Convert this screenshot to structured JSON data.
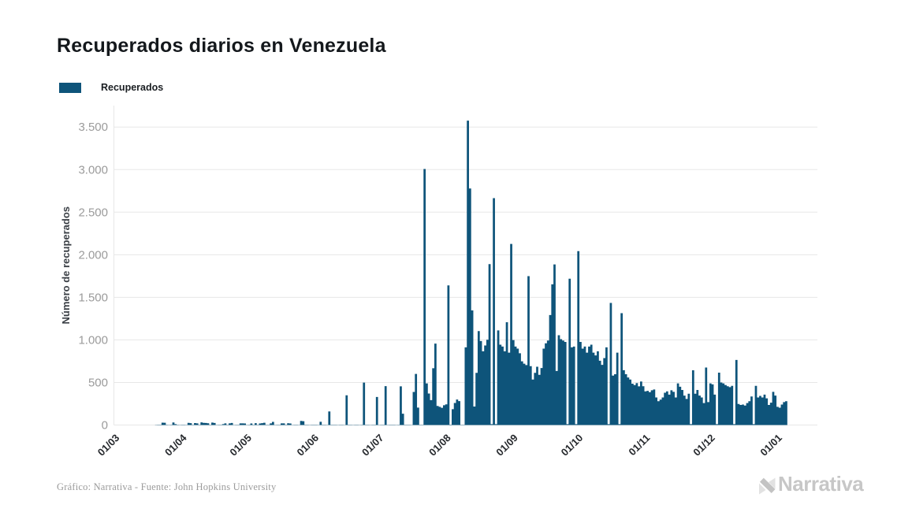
{
  "header": {
    "title": "Recuperados diarios en Venezuela"
  },
  "legend": {
    "label": "Recuperados",
    "swatch_color": "#0e547a"
  },
  "footer": {
    "credit": "Gráfico: Narrativa - Fuente: John Hopkins University",
    "brand": "Narrativa"
  },
  "chart_data": {
    "type": "bar",
    "title": "Recuperados diarios en Venezuela",
    "series_name": "Recuperados",
    "xlabel": "",
    "ylabel": "Número de recuperados",
    "ylim": [
      0,
      3750
    ],
    "grid": true,
    "legend_position": "top-left",
    "bar_color": "#0e547a",
    "y_ticks": [
      {
        "value": 0,
        "label": "0"
      },
      {
        "value": 500,
        "label": "500"
      },
      {
        "value": 1000,
        "label": "1.000"
      },
      {
        "value": 1500,
        "label": "1.500"
      },
      {
        "value": 2000,
        "label": "2.000"
      },
      {
        "value": 2500,
        "label": "2.500"
      },
      {
        "value": 3000,
        "label": "3.000"
      },
      {
        "value": 3500,
        "label": "3.500"
      }
    ],
    "x_ticks": [
      {
        "index": 0,
        "label": "01/03"
      },
      {
        "index": 31,
        "label": "01/04"
      },
      {
        "index": 61,
        "label": "01/05"
      },
      {
        "index": 92,
        "label": "01/06"
      },
      {
        "index": 122,
        "label": "01/07"
      },
      {
        "index": 153,
        "label": "01/08"
      },
      {
        "index": 184,
        "label": "01/09"
      },
      {
        "index": 214,
        "label": "01/10"
      },
      {
        "index": 245,
        "label": "01/11"
      },
      {
        "index": 275,
        "label": "01/12"
      },
      {
        "index": 306,
        "label": "01/01"
      }
    ],
    "dates": [
      "2020-03-01",
      "2020-03-02",
      "2020-03-03",
      "2020-03-04",
      "2020-03-05",
      "2020-03-06",
      "2020-03-07",
      "2020-03-08",
      "2020-03-09",
      "2020-03-10",
      "2020-03-11",
      "2020-03-12",
      "2020-03-13",
      "2020-03-14",
      "2020-03-15",
      "2020-03-16",
      "2020-03-17",
      "2020-03-18",
      "2020-03-19",
      "2020-03-20",
      "2020-03-21",
      "2020-03-22",
      "2020-03-23",
      "2020-03-24",
      "2020-03-25",
      "2020-03-26",
      "2020-03-27",
      "2020-03-28",
      "2020-03-29",
      "2020-03-30",
      "2020-03-31",
      "2020-04-01",
      "2020-04-02",
      "2020-04-03",
      "2020-04-04",
      "2020-04-05",
      "2020-04-06",
      "2020-04-07",
      "2020-04-08",
      "2020-04-09",
      "2020-04-10",
      "2020-04-11",
      "2020-04-12",
      "2020-04-13",
      "2020-04-14",
      "2020-04-15",
      "2020-04-16",
      "2020-04-17",
      "2020-04-18",
      "2020-04-19",
      "2020-04-20",
      "2020-04-21",
      "2020-04-22",
      "2020-04-23",
      "2020-04-24",
      "2020-04-25",
      "2020-04-26",
      "2020-04-27",
      "2020-04-28",
      "2020-04-29",
      "2020-04-30",
      "2020-05-01",
      "2020-05-02",
      "2020-05-03",
      "2020-05-04",
      "2020-05-05",
      "2020-05-06",
      "2020-05-07",
      "2020-05-08",
      "2020-05-09",
      "2020-05-10",
      "2020-05-11",
      "2020-05-12",
      "2020-05-13",
      "2020-05-14",
      "2020-05-15",
      "2020-05-16",
      "2020-05-17",
      "2020-05-18",
      "2020-05-19",
      "2020-05-20",
      "2020-05-21",
      "2020-05-22",
      "2020-05-23",
      "2020-05-24",
      "2020-05-25",
      "2020-05-26",
      "2020-05-27",
      "2020-05-28",
      "2020-05-29",
      "2020-05-30",
      "2020-05-31",
      "2020-06-01",
      "2020-06-02",
      "2020-06-03",
      "2020-06-04",
      "2020-06-05",
      "2020-06-06",
      "2020-06-07",
      "2020-06-08",
      "2020-06-09",
      "2020-06-10",
      "2020-06-11",
      "2020-06-12",
      "2020-06-13",
      "2020-06-14",
      "2020-06-15",
      "2020-06-16",
      "2020-06-17",
      "2020-06-18",
      "2020-06-19",
      "2020-06-20",
      "2020-06-21",
      "2020-06-22",
      "2020-06-23",
      "2020-06-24",
      "2020-06-25",
      "2020-06-26",
      "2020-06-27",
      "2020-06-28",
      "2020-06-29",
      "2020-06-30",
      "2020-07-01",
      "2020-07-02",
      "2020-07-03",
      "2020-07-04",
      "2020-07-05",
      "2020-07-06",
      "2020-07-07",
      "2020-07-08",
      "2020-07-09",
      "2020-07-10",
      "2020-07-11",
      "2020-07-12",
      "2020-07-13",
      "2020-07-14",
      "2020-07-15",
      "2020-07-16",
      "2020-07-17",
      "2020-07-18",
      "2020-07-19",
      "2020-07-20",
      "2020-07-21",
      "2020-07-22",
      "2020-07-23",
      "2020-07-24",
      "2020-07-25",
      "2020-07-26",
      "2020-07-27",
      "2020-07-28",
      "2020-07-29",
      "2020-07-30",
      "2020-07-31",
      "2020-08-01",
      "2020-08-02",
      "2020-08-03",
      "2020-08-04",
      "2020-08-05",
      "2020-08-06",
      "2020-08-07",
      "2020-08-08",
      "2020-08-09",
      "2020-08-10",
      "2020-08-11",
      "2020-08-12",
      "2020-08-13",
      "2020-08-14",
      "2020-08-15",
      "2020-08-16",
      "2020-08-17",
      "2020-08-18",
      "2020-08-19",
      "2020-08-20",
      "2020-08-21",
      "2020-08-22",
      "2020-08-23",
      "2020-08-24",
      "2020-08-25",
      "2020-08-26",
      "2020-08-27",
      "2020-08-28",
      "2020-08-29",
      "2020-08-30",
      "2020-08-31",
      "2020-09-01",
      "2020-09-02",
      "2020-09-03",
      "2020-09-04",
      "2020-09-05",
      "2020-09-06",
      "2020-09-07",
      "2020-09-08",
      "2020-09-09",
      "2020-09-10",
      "2020-09-11",
      "2020-09-12",
      "2020-09-13",
      "2020-09-14",
      "2020-09-15",
      "2020-09-16",
      "2020-09-17",
      "2020-09-18",
      "2020-09-19",
      "2020-09-20",
      "2020-09-21",
      "2020-09-22",
      "2020-09-23",
      "2020-09-24",
      "2020-09-25",
      "2020-09-26",
      "2020-09-27",
      "2020-09-28",
      "2020-09-29",
      "2020-09-30",
      "2020-10-01",
      "2020-10-02",
      "2020-10-03",
      "2020-10-04",
      "2020-10-05",
      "2020-10-06",
      "2020-10-07",
      "2020-10-08",
      "2020-10-09",
      "2020-10-10",
      "2020-10-11",
      "2020-10-12",
      "2020-10-13",
      "2020-10-14",
      "2020-10-15",
      "2020-10-16",
      "2020-10-17",
      "2020-10-18",
      "2020-10-19",
      "2020-10-20",
      "2020-10-21",
      "2020-10-22",
      "2020-10-23",
      "2020-10-24",
      "2020-10-25",
      "2020-10-26",
      "2020-10-27",
      "2020-10-28",
      "2020-10-29",
      "2020-10-30",
      "2020-10-31",
      "2020-11-01",
      "2020-11-02",
      "2020-11-03",
      "2020-11-04",
      "2020-11-05",
      "2020-11-06",
      "2020-11-07",
      "2020-11-08",
      "2020-11-09",
      "2020-11-10",
      "2020-11-11",
      "2020-11-12",
      "2020-11-13",
      "2020-11-14",
      "2020-11-15",
      "2020-11-16",
      "2020-11-17",
      "2020-11-18",
      "2020-11-19",
      "2020-11-20",
      "2020-11-21",
      "2020-11-22",
      "2020-11-23",
      "2020-11-24",
      "2020-11-25",
      "2020-11-26",
      "2020-11-27",
      "2020-11-28",
      "2020-11-29",
      "2020-11-30",
      "2020-12-01",
      "2020-12-02",
      "2020-12-03",
      "2020-12-04",
      "2020-12-05",
      "2020-12-06",
      "2020-12-07",
      "2020-12-08",
      "2020-12-09",
      "2020-12-10",
      "2020-12-11",
      "2020-12-12",
      "2020-12-13",
      "2020-12-14",
      "2020-12-15",
      "2020-12-16",
      "2020-12-17",
      "2020-12-18",
      "2020-12-19",
      "2020-12-20",
      "2020-12-21",
      "2020-12-22",
      "2020-12-23",
      "2020-12-24",
      "2020-12-25",
      "2020-12-26",
      "2020-12-27",
      "2020-12-28",
      "2020-12-29",
      "2020-12-30",
      "2020-12-31",
      "2021-01-01"
    ],
    "values": [
      0,
      0,
      0,
      0,
      0,
      0,
      0,
      0,
      0,
      0,
      0,
      0,
      0,
      0,
      0,
      2,
      3,
      3,
      28,
      27,
      3,
      2,
      4,
      30,
      10,
      3,
      2,
      4,
      3,
      2,
      26,
      22,
      3,
      23,
      20,
      3,
      31,
      26,
      24,
      21,
      3,
      29,
      24,
      2,
      3,
      4,
      10,
      20,
      3,
      20,
      24,
      2,
      3,
      4,
      20,
      20,
      18,
      2,
      3,
      18,
      3,
      22,
      3,
      19,
      22,
      27,
      4,
      3,
      20,
      37,
      2,
      3,
      4,
      20,
      20,
      3,
      21,
      18,
      2,
      4,
      3,
      2,
      49,
      45,
      3,
      4,
      2,
      3,
      4,
      3,
      2,
      38,
      3,
      4,
      2,
      160,
      3,
      4,
      3,
      2,
      4,
      3,
      2,
      349,
      4,
      3,
      2,
      4,
      3,
      2,
      3,
      498,
      4,
      3,
      2,
      4,
      3,
      330,
      2,
      3,
      4,
      457,
      2,
      3,
      4,
      3,
      2,
      4,
      455,
      133,
      3,
      4,
      3,
      2,
      388,
      600,
      205,
      4,
      3,
      3007,
      489,
      370,
      293,
      667,
      957,
      224,
      214,
      202,
      233,
      243,
      1640,
      5,
      186,
      259,
      300,
      281,
      3,
      4,
      913,
      3575,
      2778,
      1346,
      218,
      613,
      1103,
      986,
      866,
      935,
      1001,
      1890,
      10,
      2665,
      10,
      1112,
      944,
      922,
      866,
      1207,
      850,
      2127,
      998,
      922,
      897,
      843,
      748,
      720,
      704,
      1749,
      692,
      534,
      613,
      685,
      590,
      670,
      897,
      960,
      992,
      1292,
      1653,
      1886,
      635,
      1055,
      1008,
      992,
      976,
      10,
      1719,
      913,
      922,
      10,
      2042,
      976,
      897,
      922,
      850,
      922,
      944,
      850,
      818,
      866,
      755,
      707,
      786,
      913,
      10,
      1434,
      581,
      597,
      850,
      10,
      1314,
      644,
      597,
      559,
      534,
      486,
      470,
      493,
      455,
      511,
      456,
      395,
      401,
      386,
      408,
      417,
      324,
      280,
      298,
      324,
      379,
      395,
      357,
      408,
      390,
      324,
      489,
      450,
      412,
      346,
      307,
      368,
      10,
      643,
      368,
      412,
      346,
      324,
      258,
      676,
      269,
      489,
      478,
      357,
      10,
      615,
      500,
      489,
      470,
      456,
      445,
      460,
      10,
      764,
      247,
      236,
      240,
      229,
      258,
      280,
      335,
      10,
      460,
      324,
      342,
      324,
      357,
      313,
      236,
      262,
      390,
      346,
      214,
      203,
      240,
      269,
      280
    ]
  }
}
